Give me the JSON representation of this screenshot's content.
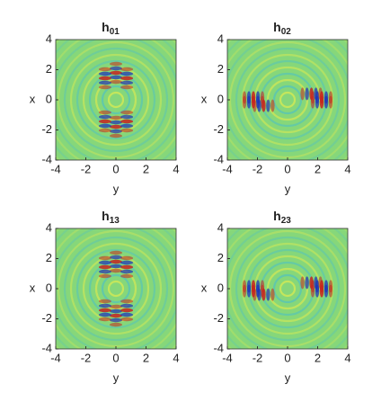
{
  "chart_data": [
    {
      "type": "heatmap",
      "title": "h",
      "title_sub": "01",
      "xlabel": "y",
      "ylabel": "x",
      "xlim": [
        -4,
        4
      ],
      "ylim": [
        -4,
        4
      ],
      "xticks": [
        -4,
        -2,
        0,
        2,
        4
      ],
      "yticks": [
        -4,
        -2,
        0,
        2,
        4
      ]
    },
    {
      "type": "heatmap",
      "title": "h",
      "title_sub": "02",
      "xlabel": "y",
      "ylabel": "x",
      "xlim": [
        -4,
        4
      ],
      "ylim": [
        -4,
        4
      ],
      "xticks": [
        -4,
        -2,
        0,
        2,
        4
      ],
      "yticks": [
        -4,
        -2,
        0,
        2,
        4
      ]
    },
    {
      "type": "heatmap",
      "title": "h",
      "title_sub": "13",
      "xlabel": "y",
      "ylabel": "x",
      "xlim": [
        -4,
        4
      ],
      "ylim": [
        -4,
        4
      ],
      "xticks": [
        -4,
        -2,
        0,
        2,
        4
      ],
      "yticks": [
        -4,
        -2,
        0,
        2,
        4
      ]
    },
    {
      "type": "heatmap",
      "title": "h",
      "title_sub": "23",
      "xlabel": "y",
      "ylabel": "x",
      "xlim": [
        -4,
        4
      ],
      "ylim": [
        -4,
        4
      ],
      "xticks": [
        -4,
        -2,
        0,
        2,
        4
      ],
      "yticks": [
        -4,
        -2,
        0,
        2,
        4
      ]
    }
  ]
}
